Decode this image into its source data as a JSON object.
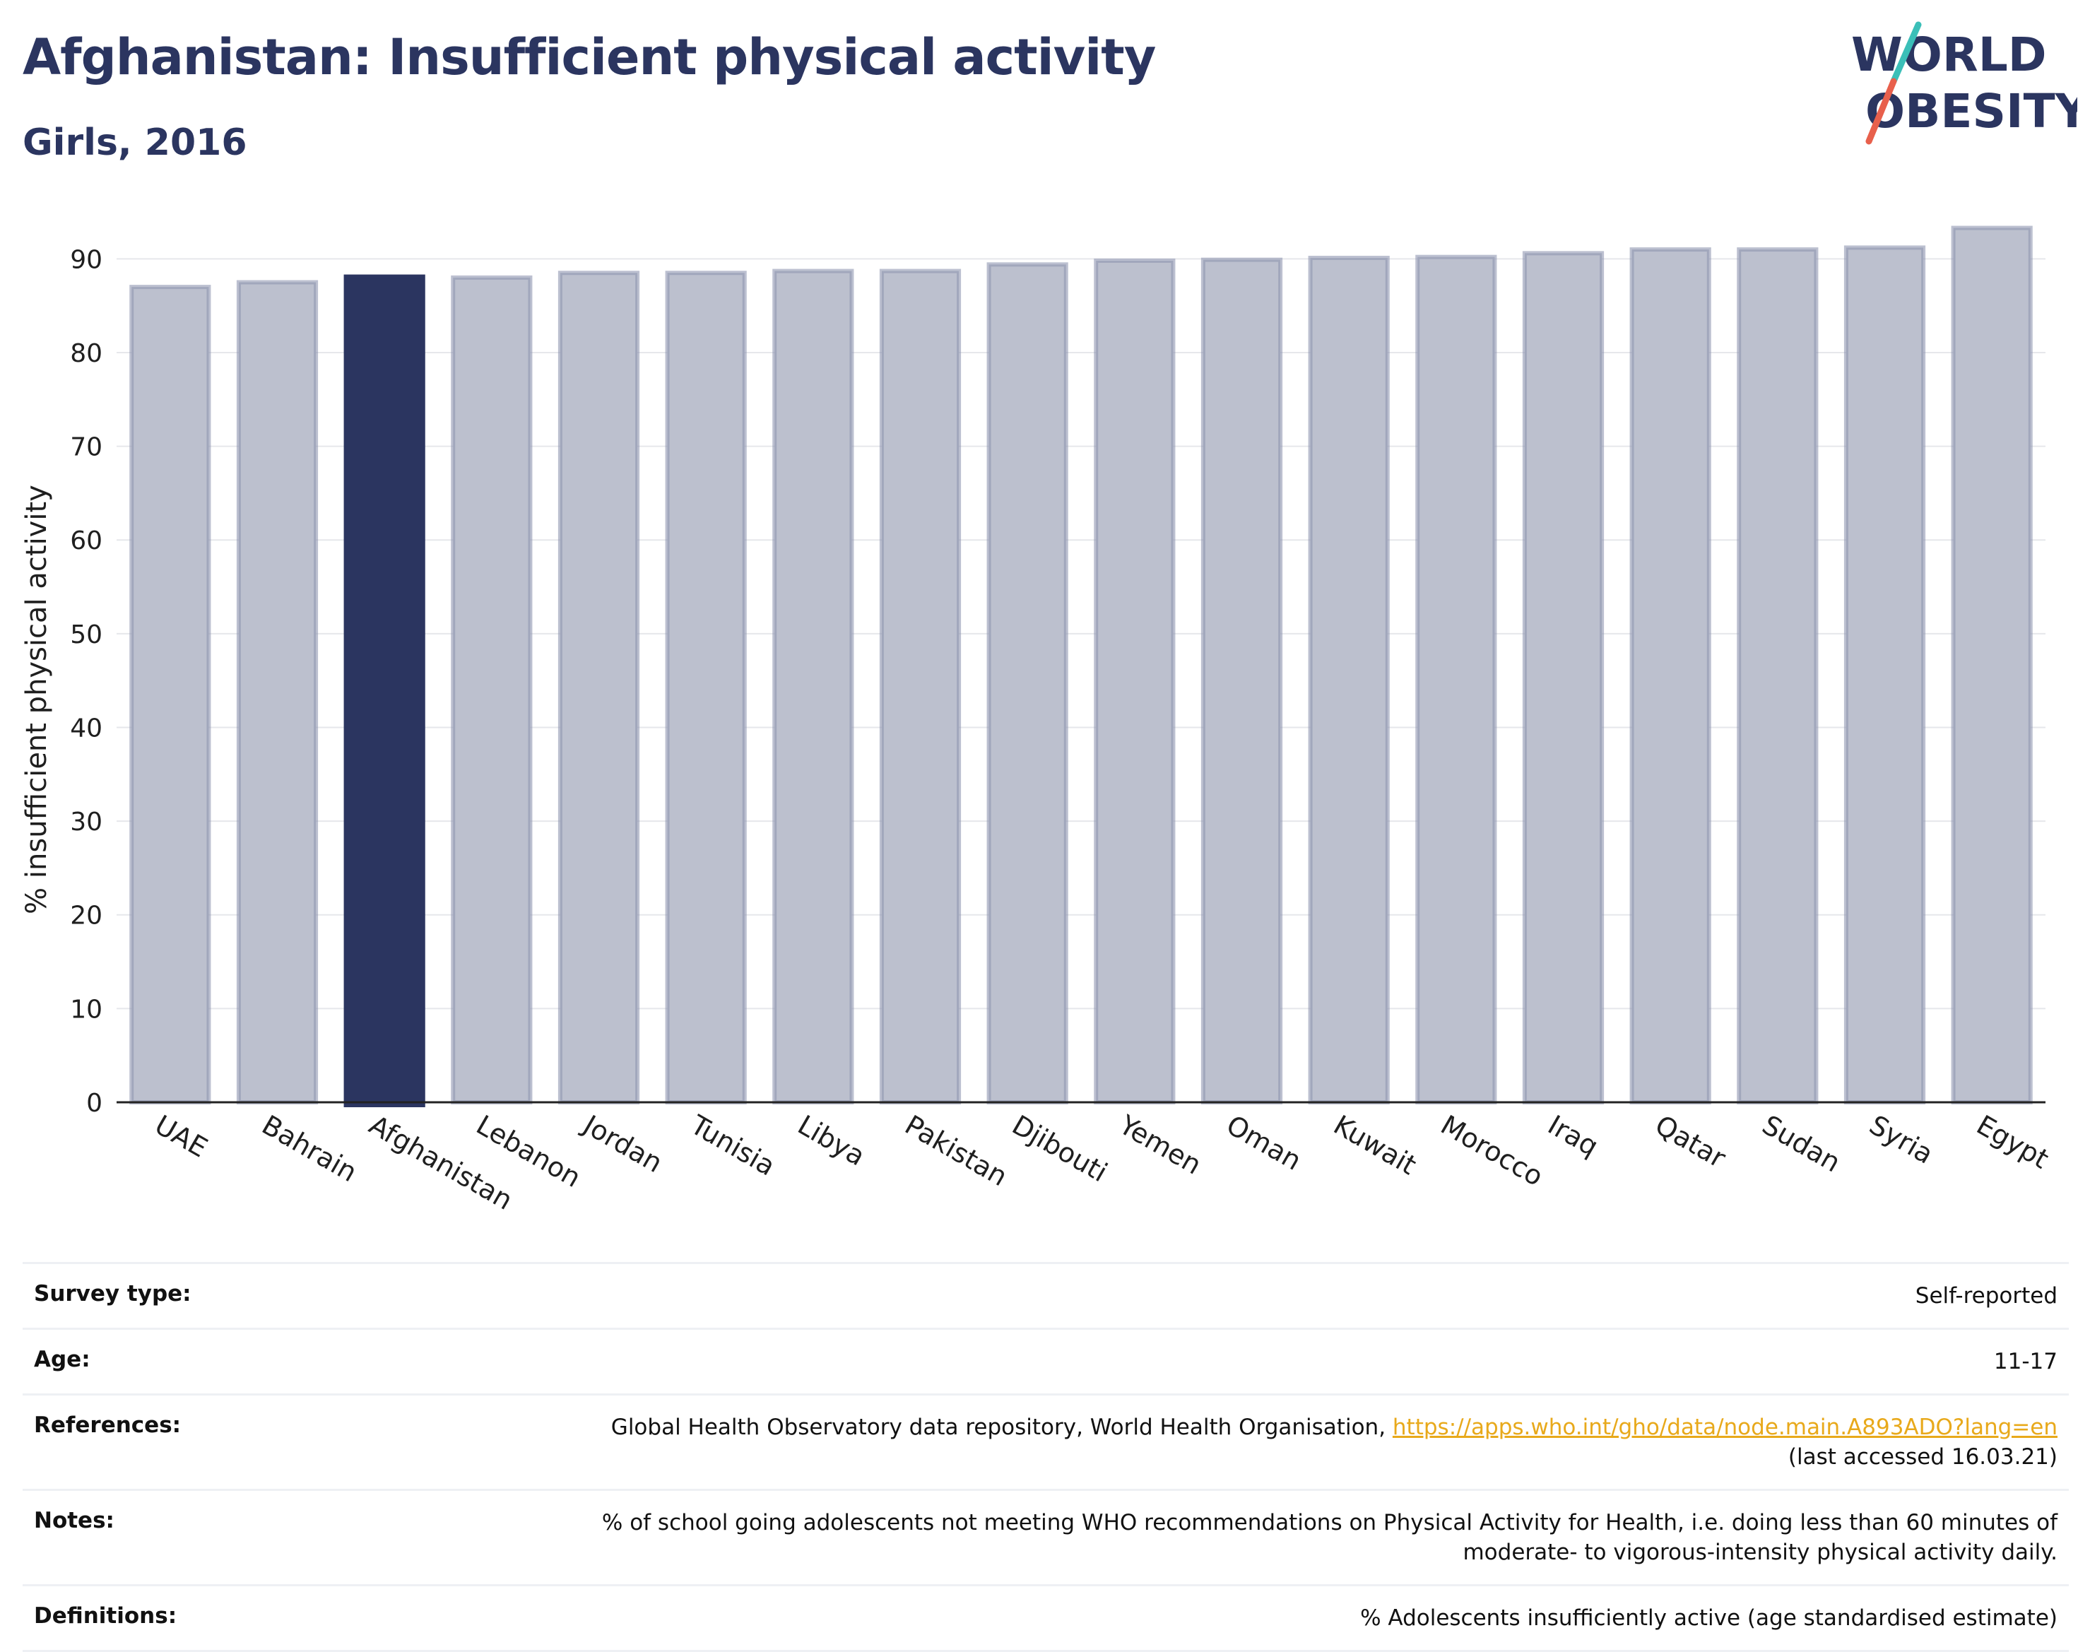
{
  "header": {
    "title": "Afghanistan: Insufficient physical activity",
    "subtitle": "Girls, 2016"
  },
  "logo": {
    "line1": "WORLD",
    "line2": "OBESITY",
    "accent_teal": "#3bbfb8",
    "accent_red": "#e8604c"
  },
  "colors": {
    "bar_default": "#bcc0ce",
    "bar_default_edge": "#8f96b0",
    "bar_highlight": "#2b3560",
    "title": "#2b3560",
    "link": "#e8a91b"
  },
  "chart_data": {
    "type": "bar",
    "categories": [
      "UAE",
      "Bahrain",
      "Afghanistan",
      "Lebanon",
      "Jordan",
      "Tunisia",
      "Libya",
      "Pakistan",
      "Djibouti",
      "Yemen",
      "Oman",
      "Kuwait",
      "Morocco",
      "Iraq",
      "Qatar",
      "Sudan",
      "Syria",
      "Egypt"
    ],
    "values": [
      87.0,
      87.5,
      88.1,
      88.0,
      88.5,
      88.5,
      88.7,
      88.7,
      89.4,
      89.8,
      89.9,
      90.1,
      90.2,
      90.6,
      91.0,
      91.0,
      91.2,
      93.3
    ],
    "highlight": "Afghanistan",
    "ylabel": "% insufficient physical activity",
    "xlabel": "",
    "ylim": [
      0,
      95
    ],
    "yticks": [
      0,
      10,
      20,
      30,
      40,
      50,
      60,
      70,
      80,
      90
    ],
    "grid": true
  },
  "info": {
    "survey_type_label": "Survey type:",
    "survey_type_value": "Self-reported",
    "age_label": "Age:",
    "age_value": "11-17",
    "references_label": "References:",
    "references_text": "Global Health Observatory data repository, World Health Organisation, ",
    "references_link": "https://apps.who.int/gho/data/node.main.A893ADO?lang=en",
    "references_accessed": "(last accessed 16.03.21)",
    "notes_label": "Notes:",
    "notes_line1": "% of school going adolescents not meeting WHO recommendations on Physical Activity for Health, i.e. doing less than 60 minutes of",
    "notes_line2": "moderate- to vigorous-intensity physical activity daily.",
    "definitions_label": "Definitions:",
    "definitions_value": "% Adolescents insufficiently active (age standardised estimate)"
  }
}
